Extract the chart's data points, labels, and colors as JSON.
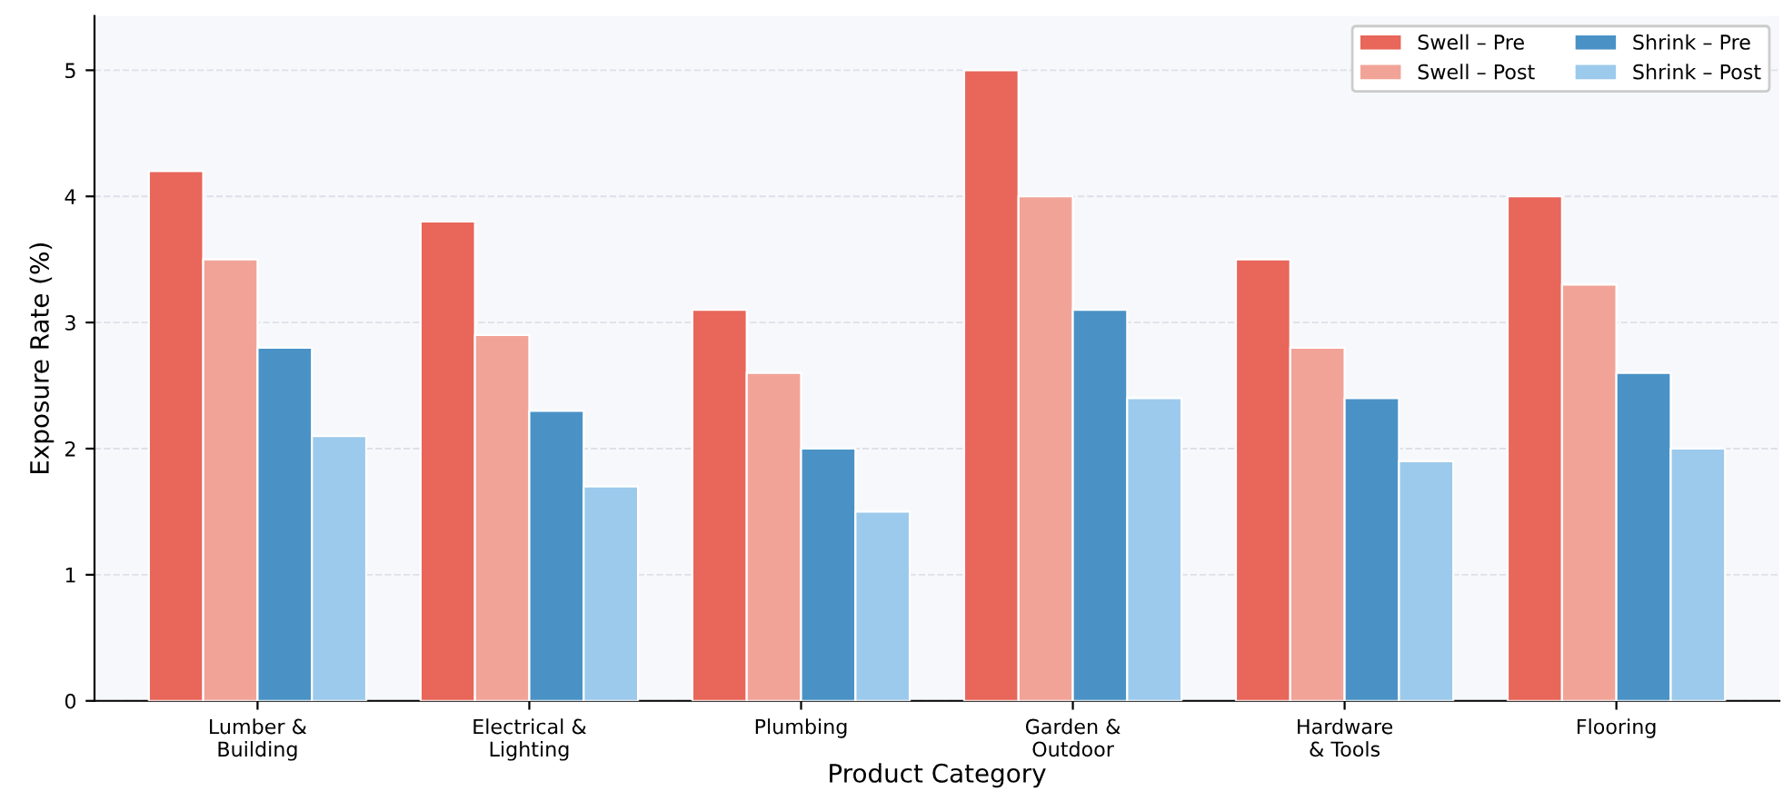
{
  "chart_data": {
    "type": "bar",
    "xlabel": "Product Category",
    "ylabel": "Exposure Rate (%)",
    "categories": [
      "Lumber &\nBuilding",
      "Electrical &\nLighting",
      "Plumbing",
      "Garden &\nOutdoor",
      "Hardware\n& Tools",
      "Flooring"
    ],
    "series": [
      {
        "name": "Swell – Pre",
        "color": "#e8665a",
        "values": [
          4.2,
          3.8,
          3.1,
          5.0,
          3.5,
          4.0
        ]
      },
      {
        "name": "Swell – Post",
        "color": "#f2a398",
        "values": [
          3.5,
          2.9,
          2.6,
          4.0,
          2.8,
          3.3
        ]
      },
      {
        "name": "Shrink – Pre",
        "color": "#4a92c6",
        "values": [
          2.8,
          2.3,
          2.0,
          3.1,
          2.4,
          2.6
        ]
      },
      {
        "name": "Shrink – Post",
        "color": "#9ccaec",
        "values": [
          2.1,
          1.7,
          1.5,
          2.4,
          1.9,
          2.0
        ]
      }
    ],
    "ylim": [
      0,
      5.43
    ],
    "yticks": [
      0,
      1,
      2,
      3,
      4,
      5
    ],
    "grid": "y",
    "legend": "top right"
  }
}
